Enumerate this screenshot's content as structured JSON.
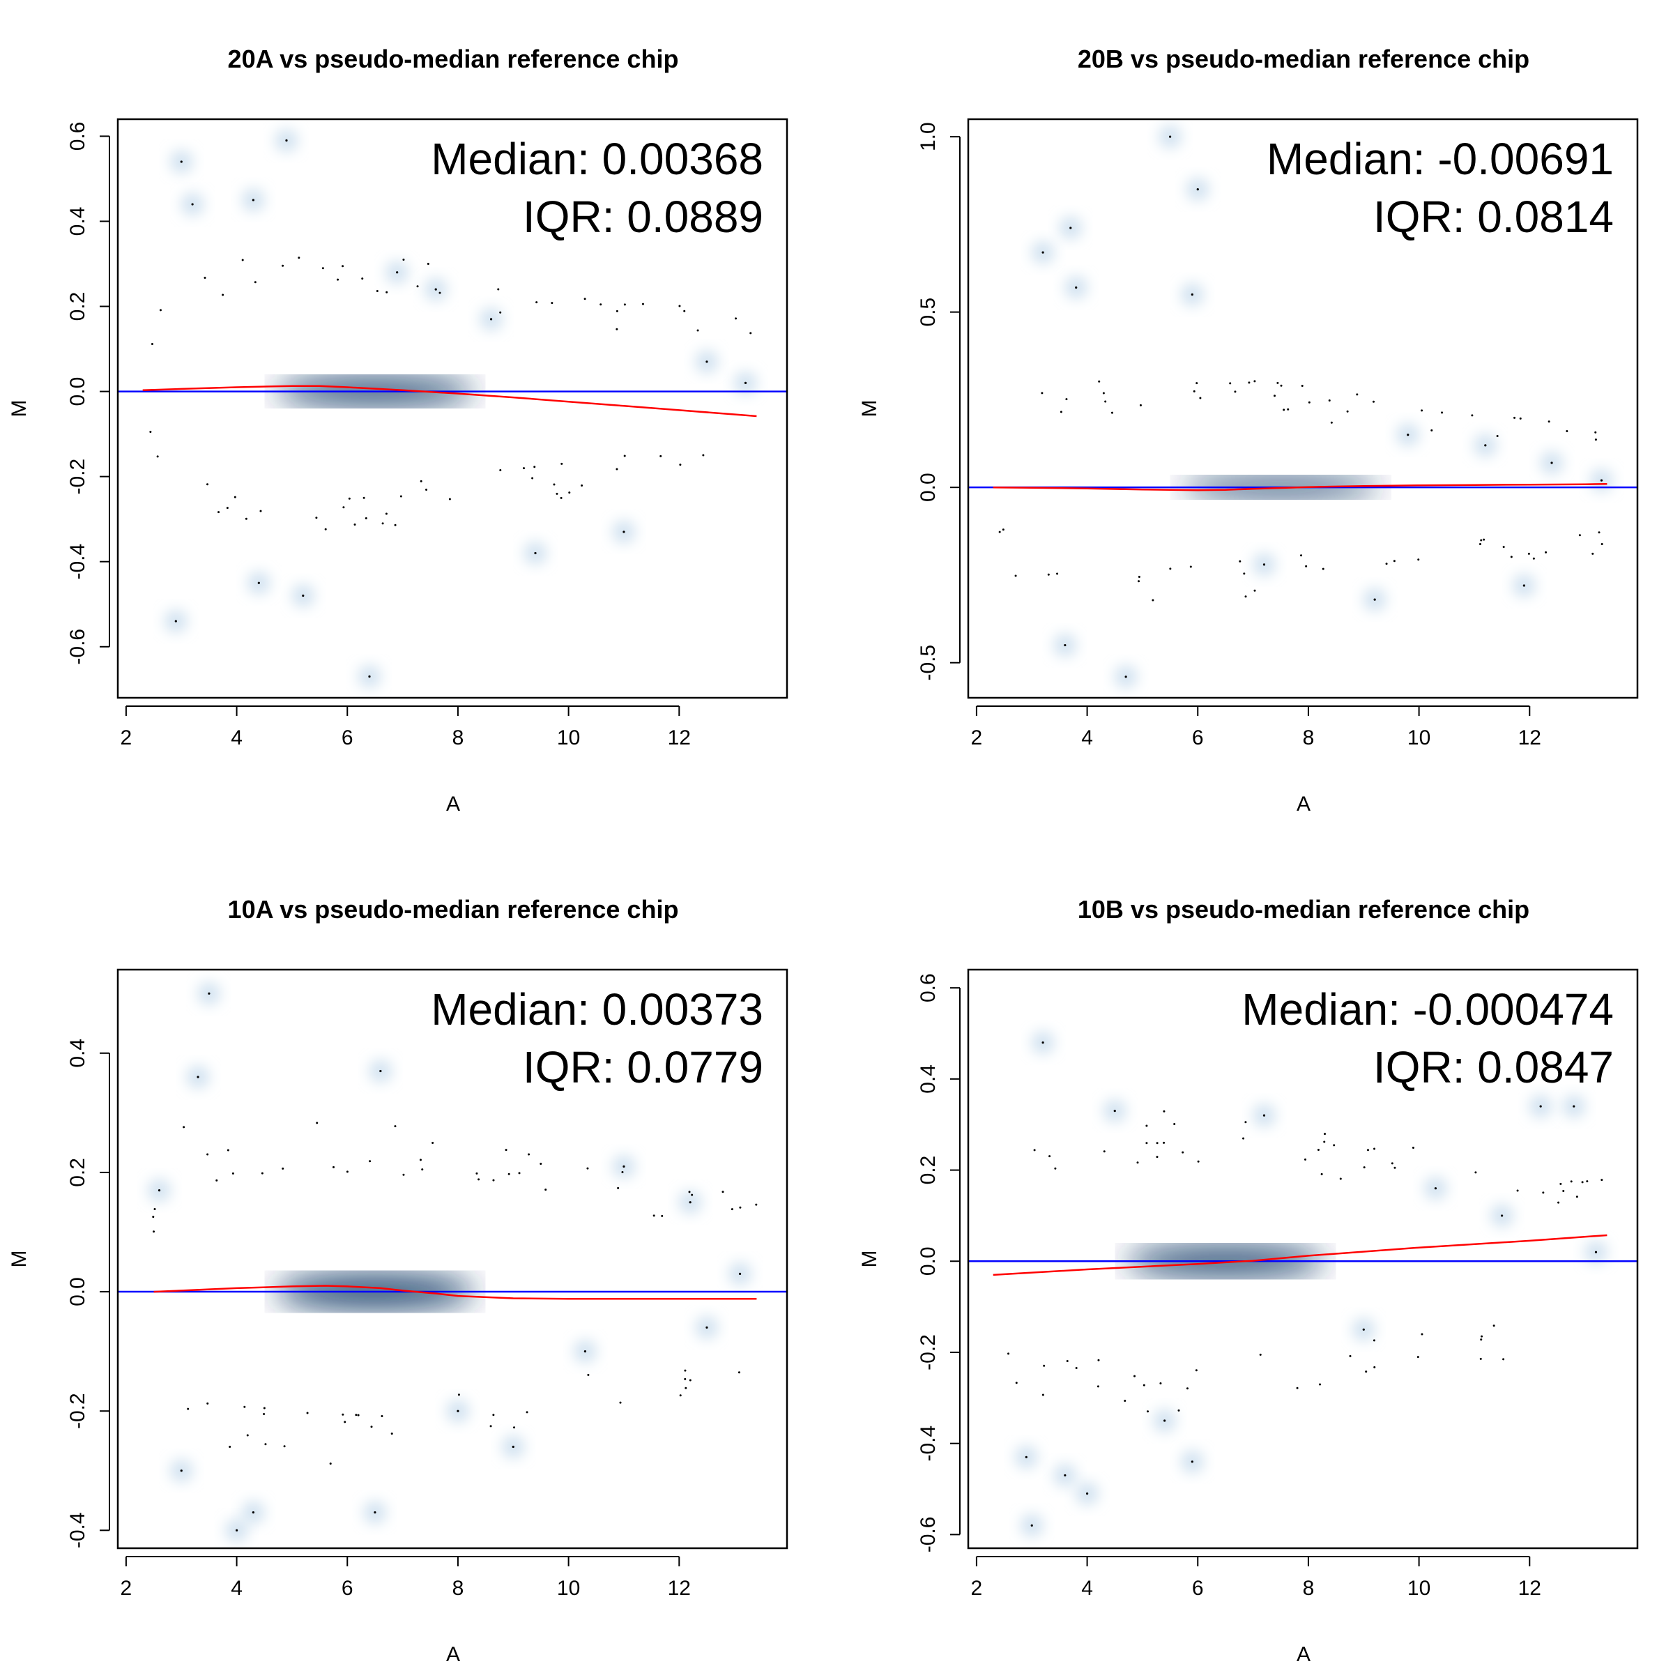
{
  "chart_data": [
    {
      "type": "scatter",
      "title": "20A vs pseudo-median reference chip",
      "xlabel": "A",
      "ylabel": "M",
      "xlim": [
        1.85,
        13.95
      ],
      "ylim": [
        -0.72,
        0.64
      ],
      "xticks": [
        "2",
        "4",
        "6",
        "8",
        "10",
        "12"
      ],
      "yticks": [
        "-0.6",
        "-0.4",
        "-0.2",
        "0.0",
        "0.2",
        "0.4",
        "0.6"
      ],
      "annotation": {
        "median": "Median: 0.00368",
        "iqr": "IQR: 0.0889"
      },
      "reference_line_y": 0,
      "loess": {
        "x": [
          2.3,
          3,
          4,
          5,
          5.5,
          6,
          7,
          8,
          9,
          10,
          11,
          12,
          13,
          13.4
        ],
        "y": [
          0.003,
          0.006,
          0.01,
          0.013,
          0.013,
          0.01,
          0.003,
          -0.005,
          -0.014,
          -0.024,
          -0.034,
          -0.044,
          -0.054,
          -0.058
        ]
      },
      "density": {
        "center_x": 6.5,
        "center_y": 0.0,
        "core_spread": 0.09,
        "wide_spread": 0.2
      },
      "outliers": [
        [
          3.0,
          0.54
        ],
        [
          4.9,
          0.59
        ],
        [
          2.9,
          -0.54
        ],
        [
          6.4,
          -0.67
        ],
        [
          4.4,
          -0.45
        ],
        [
          5.2,
          -0.48
        ],
        [
          3.2,
          0.44
        ],
        [
          4.3,
          0.45
        ],
        [
          6.9,
          0.28
        ],
        [
          7.6,
          0.24
        ],
        [
          12.5,
          0.07
        ],
        [
          13.2,
          0.02
        ],
        [
          8.6,
          0.17
        ],
        [
          11.0,
          -0.33
        ],
        [
          9.4,
          -0.38
        ]
      ],
      "bias": 0.0
    },
    {
      "type": "scatter",
      "title": "20B vs pseudo-median reference chip",
      "xlabel": "A",
      "ylabel": "M",
      "xlim": [
        1.85,
        13.95
      ],
      "ylim": [
        -0.6,
        1.05
      ],
      "xticks": [
        "2",
        "4",
        "6",
        "8",
        "10",
        "12"
      ],
      "yticks": [
        "-0.5",
        "0.0",
        "0.5",
        "1.0"
      ],
      "annotation": {
        "median": "Median: -0.00691",
        "iqr": "IQR: 0.0814"
      },
      "reference_line_y": 0,
      "loess": {
        "x": [
          2.3,
          3,
          4,
          5,
          6,
          6.5,
          7,
          8,
          9,
          10,
          11,
          12,
          13,
          13.4
        ],
        "y": [
          0.0,
          -0.001,
          -0.003,
          -0.006,
          -0.008,
          -0.007,
          -0.004,
          0.001,
          0.004,
          0.006,
          0.007,
          0.008,
          0.009,
          0.01
        ]
      },
      "density": {
        "center_x": 7.5,
        "center_y": 0.0,
        "core_spread": 0.08,
        "wide_spread": 0.2
      },
      "outliers": [
        [
          5.5,
          1.0
        ],
        [
          6.0,
          0.85
        ],
        [
          3.7,
          0.74
        ],
        [
          3.2,
          0.67
        ],
        [
          3.8,
          0.57
        ],
        [
          5.9,
          0.55
        ],
        [
          4.7,
          -0.54
        ],
        [
          9.2,
          -0.32
        ],
        [
          11.9,
          -0.28
        ],
        [
          3.6,
          -0.45
        ],
        [
          12.4,
          0.07
        ],
        [
          13.3,
          0.02
        ],
        [
          11.2,
          0.12
        ],
        [
          9.8,
          0.15
        ],
        [
          7.2,
          -0.22
        ]
      ],
      "bias": 0.05
    },
    {
      "type": "scatter",
      "title": "10A vs pseudo-median reference chip",
      "xlabel": "A",
      "ylabel": "M",
      "xlim": [
        1.85,
        13.95
      ],
      "ylim": [
        -0.43,
        0.54
      ],
      "xticks": [
        "2",
        "4",
        "6",
        "8",
        "10",
        "12"
      ],
      "yticks": [
        "-0.4",
        "-0.2",
        "0.0",
        "0.2",
        "0.4"
      ],
      "annotation": {
        "median": "Median: 0.00373",
        "iqr": "IQR: 0.0779"
      },
      "reference_line_y": 0,
      "loess": {
        "x": [
          2.5,
          3,
          4,
          5,
          5.6,
          6,
          6.6,
          7,
          7.6,
          8,
          9,
          10,
          11,
          12,
          13,
          13.4
        ],
        "y": [
          0.0,
          0.002,
          0.006,
          0.009,
          0.01,
          0.009,
          0.006,
          0.002,
          -0.003,
          -0.007,
          -0.011,
          -0.012,
          -0.012,
          -0.012,
          -0.012,
          -0.012
        ]
      },
      "density": {
        "center_x": 6.5,
        "center_y": 0.0,
        "core_spread": 0.08,
        "wide_spread": 0.18
      },
      "outliers": [
        [
          3.5,
          0.5
        ],
        [
          3.3,
          0.36
        ],
        [
          6.6,
          0.37
        ],
        [
          11.0,
          0.21
        ],
        [
          12.2,
          0.15
        ],
        [
          13.1,
          0.03
        ],
        [
          4.0,
          -0.4
        ],
        [
          4.3,
          -0.37
        ],
        [
          6.5,
          -0.37
        ],
        [
          9.0,
          -0.26
        ],
        [
          3.0,
          -0.3
        ],
        [
          8.0,
          -0.2
        ],
        [
          10.3,
          -0.1
        ],
        [
          12.5,
          -0.06
        ],
        [
          2.6,
          0.17
        ]
      ],
      "bias": 0.0
    },
    {
      "type": "scatter",
      "title": "10B vs pseudo-median reference chip",
      "xlabel": "A",
      "ylabel": "M",
      "xlim": [
        1.85,
        13.95
      ],
      "ylim": [
        -0.63,
        0.64
      ],
      "xticks": [
        "2",
        "4",
        "6",
        "8",
        "10",
        "12"
      ],
      "yticks": [
        "-0.6",
        "-0.4",
        "-0.2",
        "0.0",
        "0.2",
        "0.4",
        "0.6"
      ],
      "annotation": {
        "median": "Median: -0.000474",
        "iqr": "IQR: 0.0847"
      },
      "reference_line_y": 0,
      "loess": {
        "x": [
          2.3,
          4,
          6,
          7,
          8,
          10,
          12,
          13.4
        ],
        "y": [
          -0.03,
          -0.018,
          -0.006,
          0.001,
          0.012,
          0.03,
          0.045,
          0.057
        ]
      },
      "density": {
        "center_x": 6.5,
        "center_y": 0.0,
        "core_spread": 0.09,
        "wide_spread": 0.2
      },
      "outliers": [
        [
          3.2,
          0.48
        ],
        [
          3.0,
          -0.58
        ],
        [
          4.0,
          -0.51
        ],
        [
          3.6,
          -0.47
        ],
        [
          5.9,
          -0.44
        ],
        [
          12.2,
          0.34
        ],
        [
          12.8,
          0.34
        ],
        [
          10.3,
          0.16
        ],
        [
          13.2,
          0.02
        ],
        [
          7.2,
          0.32
        ],
        [
          5.4,
          -0.35
        ],
        [
          4.5,
          0.33
        ],
        [
          2.9,
          -0.43
        ],
        [
          11.5,
          0.1
        ],
        [
          9.0,
          -0.15
        ]
      ],
      "bias": 0.0
    }
  ]
}
